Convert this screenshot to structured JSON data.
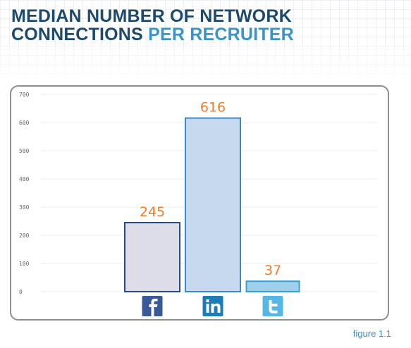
{
  "header": {
    "title_line1": "MEDIAN NUMBER OF NETWORK",
    "title_line2_a": "CONNECTIONS",
    "title_line2_b": "PER RECRUITER"
  },
  "figure_label": "figure 1.1",
  "colors": {
    "title_dark": "#1d4a6c",
    "title_accent": "#3b93c6",
    "value_label": "#f07d2a"
  },
  "chart_data": {
    "type": "bar",
    "categories": [
      "Facebook",
      "LinkedIn",
      "Twitter"
    ],
    "category_icons": [
      "facebook-icon",
      "linkedin-icon",
      "twitter-icon"
    ],
    "values": [
      245,
      616,
      37
    ],
    "data_labels": [
      "245",
      "616",
      "37"
    ],
    "ylim": [
      0,
      700
    ],
    "yticks": [
      "0",
      "100",
      "200",
      "300",
      "400",
      "500",
      "600",
      "700"
    ],
    "grid": true,
    "legend": "none",
    "bar_colors": [
      {
        "fill": "#dcdde8",
        "stroke": "#2b4a84"
      },
      {
        "fill": "#c7d9ee",
        "stroke": "#3c8ac4"
      },
      {
        "fill": "#9fd0ea",
        "stroke": "#3ba0d3"
      }
    ]
  }
}
